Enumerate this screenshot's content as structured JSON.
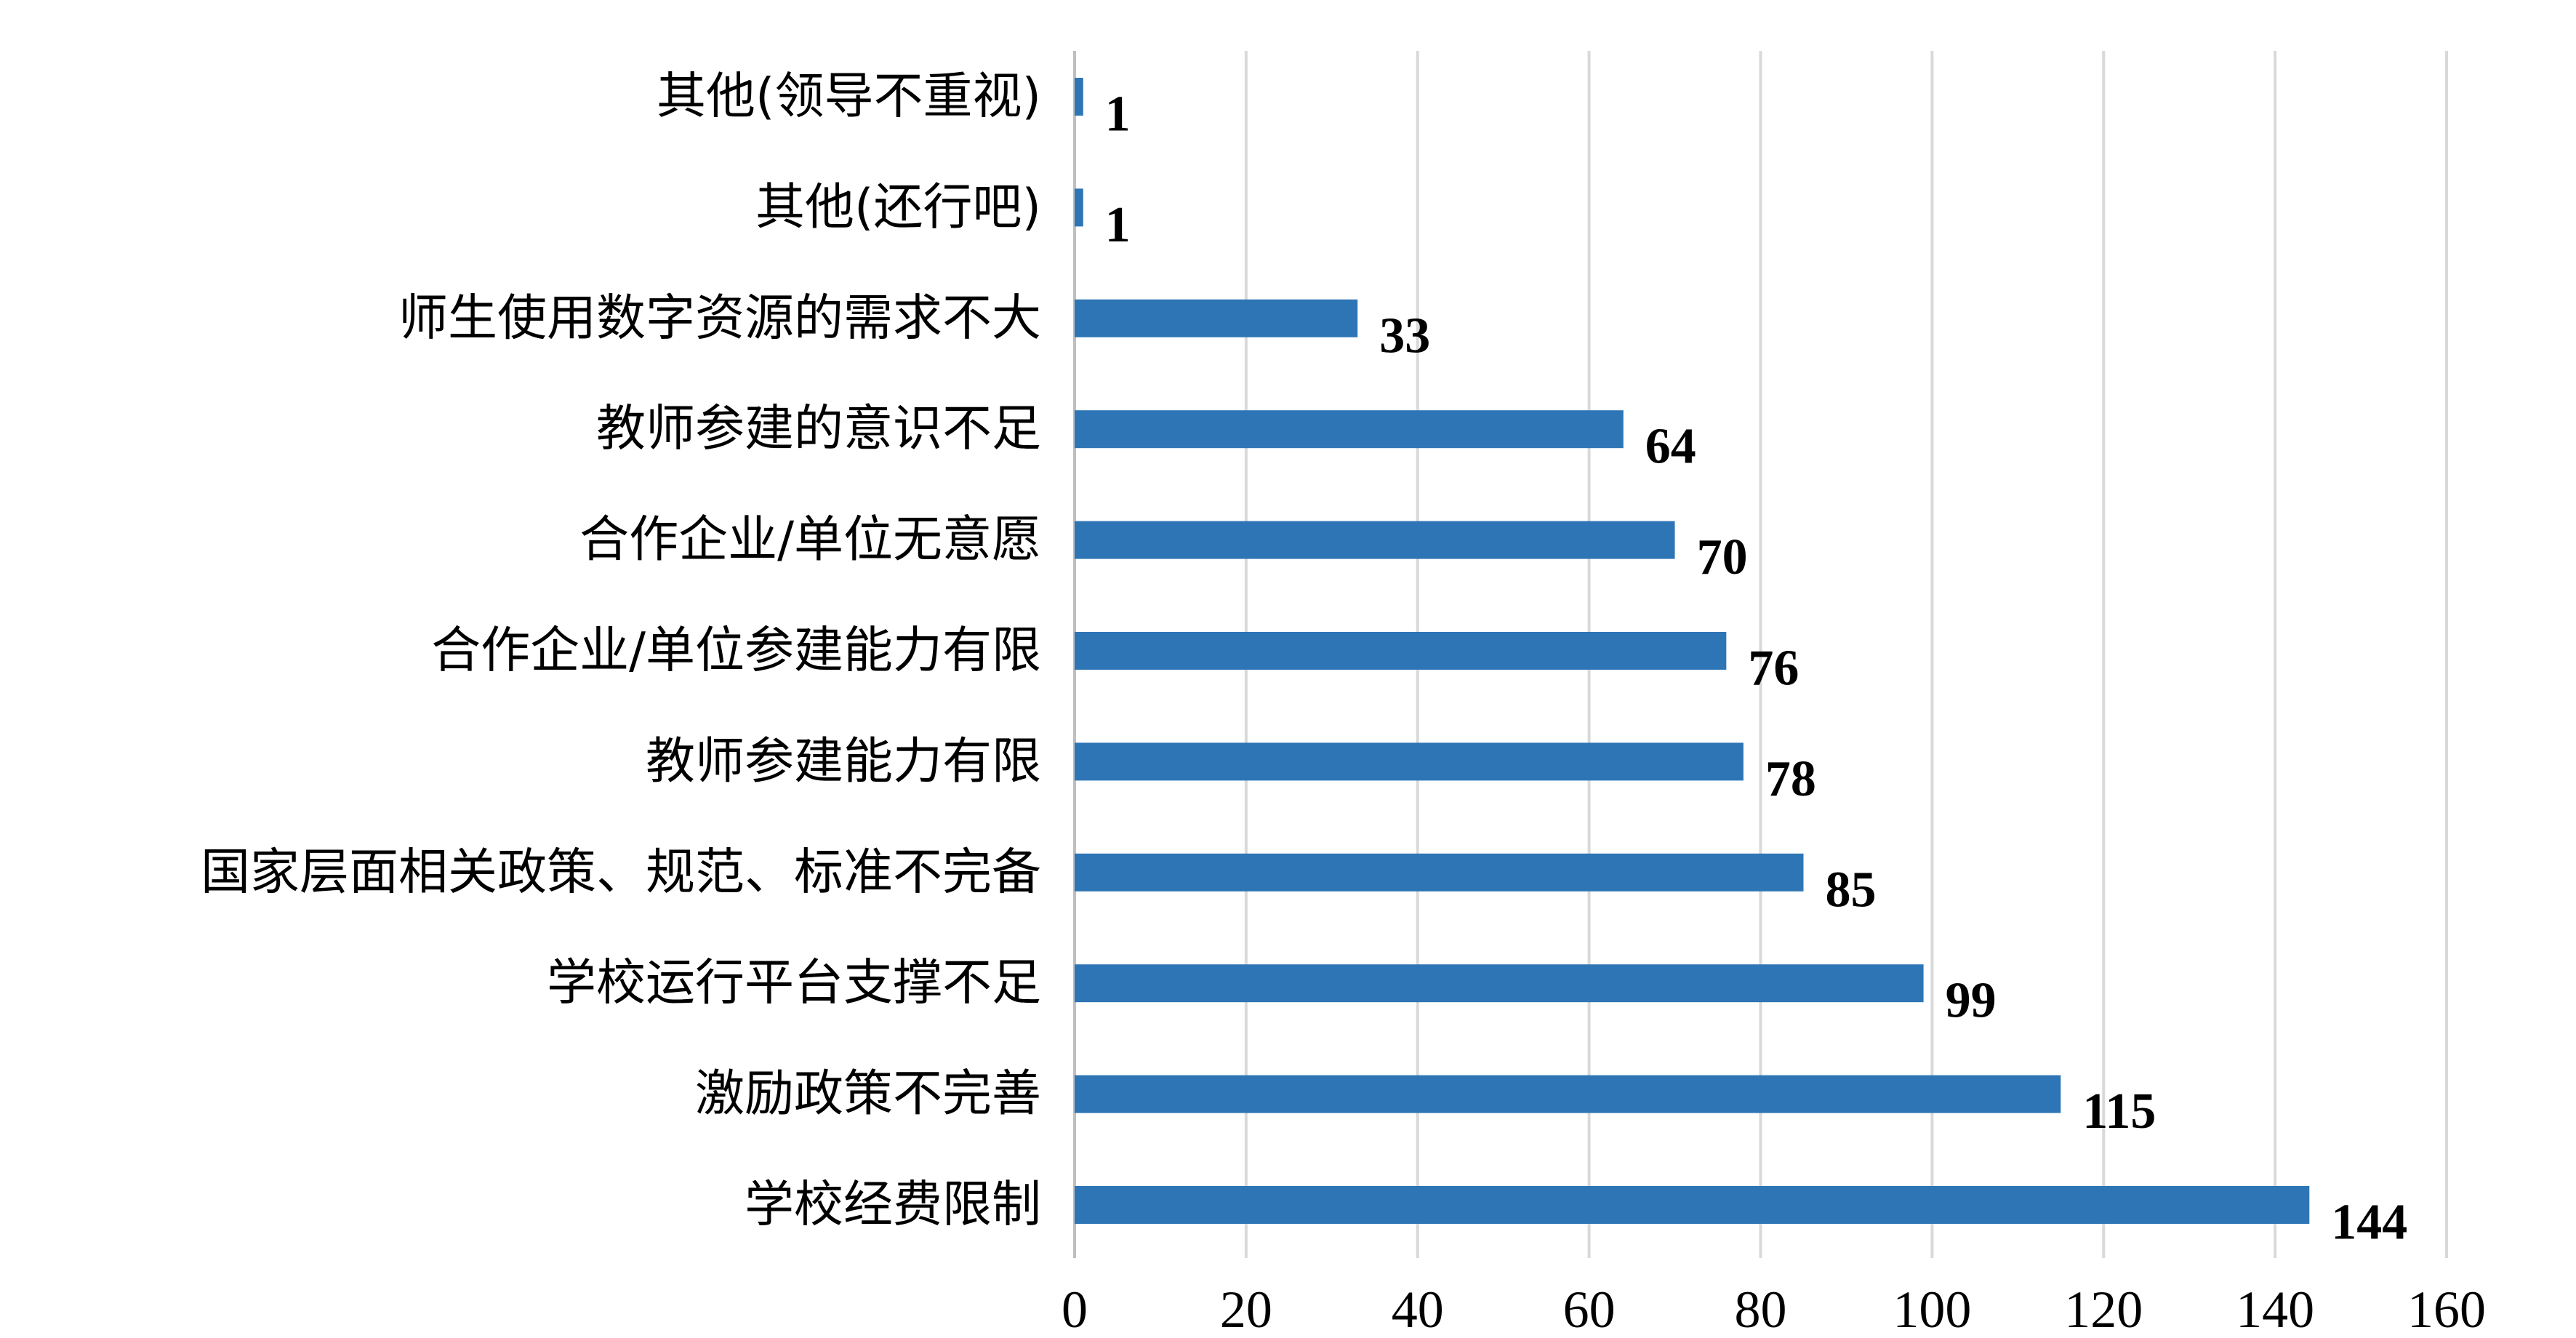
{
  "chart_data": {
    "type": "bar",
    "orientation": "horizontal",
    "categories": [
      "其他(领导不重视)",
      "其他(还行吧)",
      "师生使用数字资源的需求不大",
      "教师参建的意识不足",
      "合作企业/单位无意愿",
      "合作企业/单位参建能力有限",
      "教师参建能力有限",
      "国家层面相关政策、规范、标准不完备",
      "学校运行平台支撑不足",
      "激励政策不完善",
      "学校经费限制"
    ],
    "values": [
      1,
      1,
      33,
      64,
      70,
      76,
      78,
      85,
      99,
      115,
      144
    ],
    "xlim": [
      0,
      160
    ],
    "xticks": [
      0,
      20,
      40,
      60,
      80,
      100,
      120,
      140,
      160
    ],
    "title": "",
    "xlabel": "",
    "ylabel": "",
    "grid": "vertical",
    "legend": "none",
    "bar_color": "#2e75b6",
    "grid_color": "#d9d9d9"
  }
}
